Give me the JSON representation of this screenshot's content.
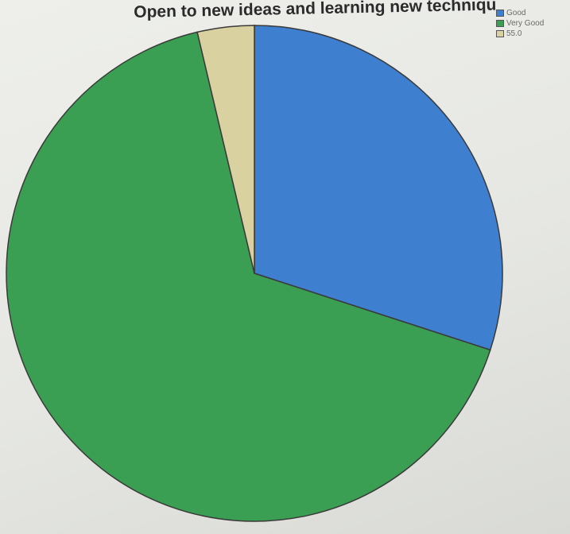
{
  "chart_data": {
    "type": "pie",
    "title": "Open to new ideas and learning new techniqu",
    "categories": [
      "Good",
      "Very Good",
      "55.0"
    ],
    "values": [
      30.0,
      66.3,
      3.7
    ],
    "colors": [
      "#3f7fd0",
      "#3a9f52",
      "#d9d2a0"
    ],
    "legend": "top-right",
    "start_angle_deg": 0,
    "direction": "clockwise"
  }
}
